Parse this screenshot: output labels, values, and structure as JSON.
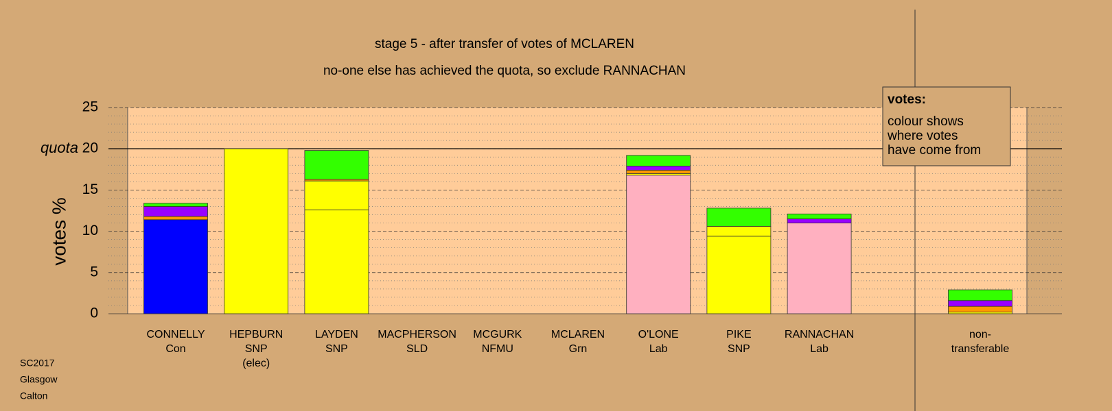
{
  "chart_data": {
    "type": "stacked-bar",
    "title": "stage 5 - after transfer of votes of MCLAREN",
    "subtitle": "no-one else has achieved the quota, so exclude RANNACHAN",
    "y_label": "votes %",
    "categories": [
      [
        "CONNELLY",
        "Con"
      ],
      [
        "HEPBURN",
        "SNP",
        "(elec)"
      ],
      [
        "LAYDEN",
        "SNP"
      ],
      [
        "MACPHERSON",
        "SLD"
      ],
      [
        "MCGURK",
        "NFMU"
      ],
      [
        "MCLAREN",
        "Grn"
      ],
      [
        "O'LONE",
        "Lab"
      ],
      [
        "PIKE",
        "SNP"
      ],
      [
        "RANNACHAN",
        "Lab"
      ],
      [
        "non-",
        "transferable"
      ]
    ],
    "stacks": [
      [
        {
          "color": "#0000ff",
          "value": 11.4
        },
        {
          "color": "#ff9900",
          "value": 0.4
        },
        {
          "color": "#9900ff",
          "value": 1.2
        },
        {
          "color": "#33ff00",
          "value": 0.4
        }
      ],
      [
        {
          "color": "#ffff00",
          "value": 20.0
        }
      ],
      [
        {
          "color": "#ffff00",
          "value": 12.6
        },
        {
          "color": "#ffff00",
          "value": 3.5
        },
        {
          "color": "#ff9900",
          "value": 0.2
        },
        {
          "color": "#33ff00",
          "value": 3.5
        }
      ],
      [
        {
          "color": "#ff9900",
          "value": 0
        }
      ],
      [
        {
          "color": "#9900ff",
          "value": 0
        }
      ],
      [
        {
          "color": "#33ff00",
          "value": 0
        }
      ],
      [
        {
          "color": "#ffb0c0",
          "value": 16.8
        },
        {
          "color": "#ffff00",
          "value": 0.2
        },
        {
          "color": "#ff9900",
          "value": 0.4
        },
        {
          "color": "#9900ff",
          "value": 0.5
        },
        {
          "color": "#33ff00",
          "value": 1.3
        }
      ],
      [
        {
          "color": "#ffff00",
          "value": 9.4
        },
        {
          "color": "#ffff00",
          "value": 1.2
        },
        {
          "color": "#33ff00",
          "value": 2.2
        }
      ],
      [
        {
          "color": "#ffb0c0",
          "value": 11.0
        },
        {
          "color": "#9900ff",
          "value": 0.5
        },
        {
          "color": "#33ff00",
          "value": 0.6
        }
      ],
      [
        {
          "color": "#ffff00",
          "value": 0.2
        },
        {
          "color": "#ff9900",
          "value": 0.7
        },
        {
          "color": "#9900ff",
          "value": 0.7
        },
        {
          "color": "#33ff00",
          "value": 1.3
        }
      ]
    ],
    "ylim": [
      0,
      25
    ],
    "yticks": [
      0,
      5,
      10,
      15,
      20,
      25
    ],
    "minor_yticks": [
      1,
      2,
      3,
      4,
      6,
      7,
      8,
      9,
      11,
      12,
      13,
      14,
      16,
      17,
      18,
      19,
      21,
      22,
      23,
      24
    ],
    "quota": {
      "value": 20,
      "label": "quota"
    },
    "legend_box": [
      "votes:",
      "colour shows",
      "where votes",
      "have come from"
    ],
    "footer": [
      "SC2017",
      "Glasgow",
      "Calton"
    ]
  }
}
